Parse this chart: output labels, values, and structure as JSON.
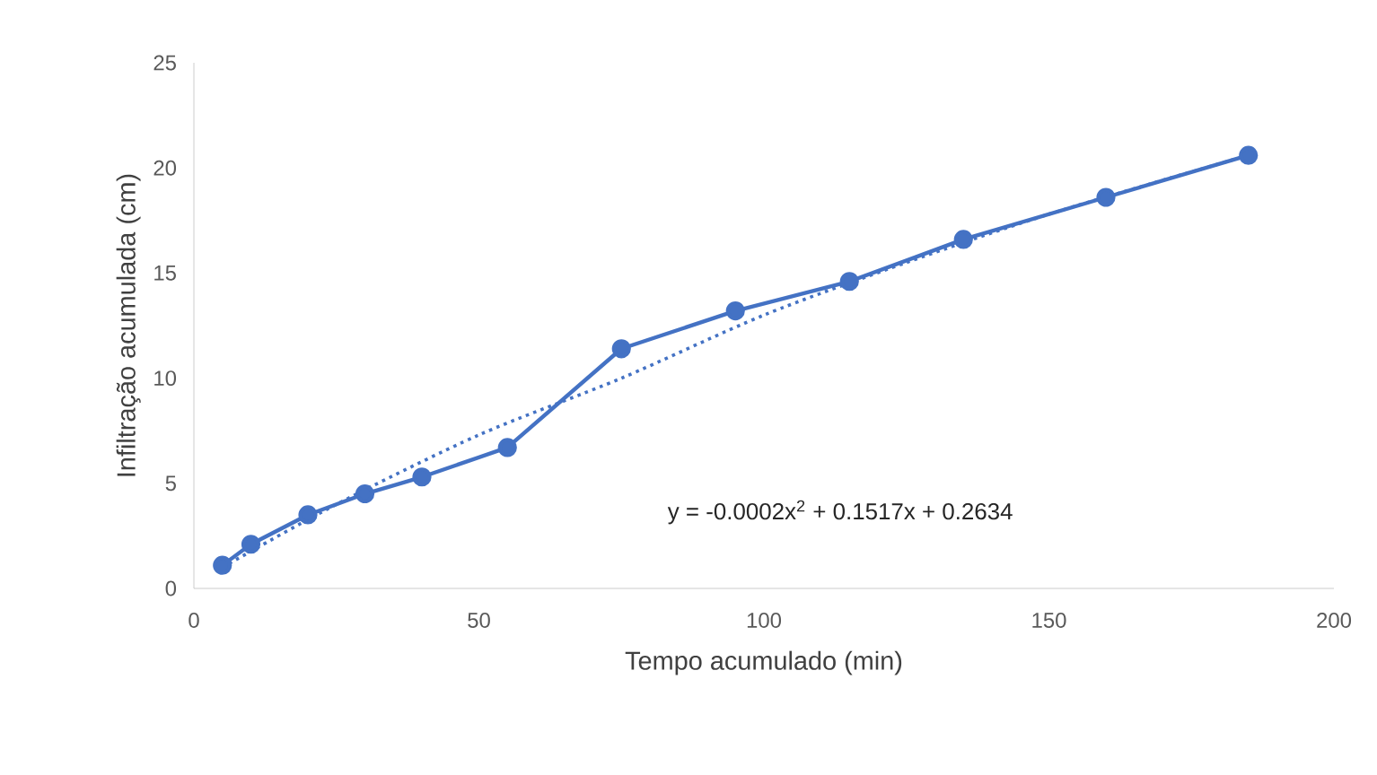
{
  "chart_data": {
    "type": "line",
    "xlabel": "Tempo acumulado (min)",
    "ylabel": "Infiltração acumulada (cm)",
    "xlim": [
      0,
      200
    ],
    "xticks": [
      0,
      50,
      100,
      150,
      200
    ],
    "ylim": [
      0,
      25
    ],
    "yticks": [
      0,
      5,
      10,
      15,
      20,
      25
    ],
    "grid": false,
    "marker": "circle",
    "line_style": "solid",
    "annotations": [
      "y = -0.0002x$^{2}$ + 0.1517x + 0.2634"
    ],
    "series": [
      {
        "color": "#4472c4",
        "x": [
          5,
          10,
          20,
          30,
          40,
          55,
          75,
          95,
          115,
          135,
          160,
          185
        ],
        "values": [
          1.1,
          2.1,
          3.5,
          4.5,
          5.3,
          6.7,
          11.4,
          13.2,
          14.6,
          16.6,
          18.6,
          20.6
        ]
      },
      {
        "type": "line",
        "color": "#4472c4",
        "marker": "none",
        "line_style": "dotted",
        "x": [
          5,
          25,
          50,
          75,
          100,
          125,
          150,
          185
        ],
        "values": [
          1.0,
          4.0,
          7.3,
          10.0,
          13.0,
          15.5,
          17.8,
          20.6
        ]
      }
    ]
  }
}
